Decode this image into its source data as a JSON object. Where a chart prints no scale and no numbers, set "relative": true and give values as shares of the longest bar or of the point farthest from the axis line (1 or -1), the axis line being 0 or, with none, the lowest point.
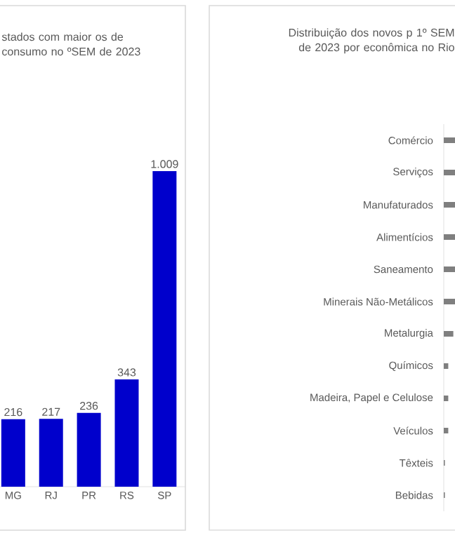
{
  "chart_data": [
    {
      "type": "bar",
      "title": "stados com maior os de consumo no ºSEM de 2023",
      "categories": [
        "MG",
        "RJ",
        "PR",
        "RS",
        "SP"
      ],
      "values": [
        216,
        217,
        236,
        343,
        1009
      ],
      "value_labels": [
        "216",
        "217",
        "236",
        "343",
        "1.009"
      ],
      "color": "#0000cc"
    },
    {
      "type": "bar",
      "orientation": "horizontal",
      "relative": true,
      "title": "Distribuição dos novos p 1º SEM de 2023 por econômica no Rio",
      "categories": [
        "Comércio",
        "Serviços",
        "Manufaturados",
        "Alimentícios",
        "Saneamento",
        "Minerais Não-Metálicos",
        "Metalurgia",
        "Químicos",
        "Madeira, Papel e Celulose",
        "Veículos",
        "Têxteis",
        "Bebidas"
      ],
      "values": [
        1,
        1,
        1,
        1,
        1,
        1,
        0.85,
        0.4,
        0.4,
        0.4,
        0.1,
        0.1
      ],
      "color": "#7f7f7f"
    }
  ]
}
